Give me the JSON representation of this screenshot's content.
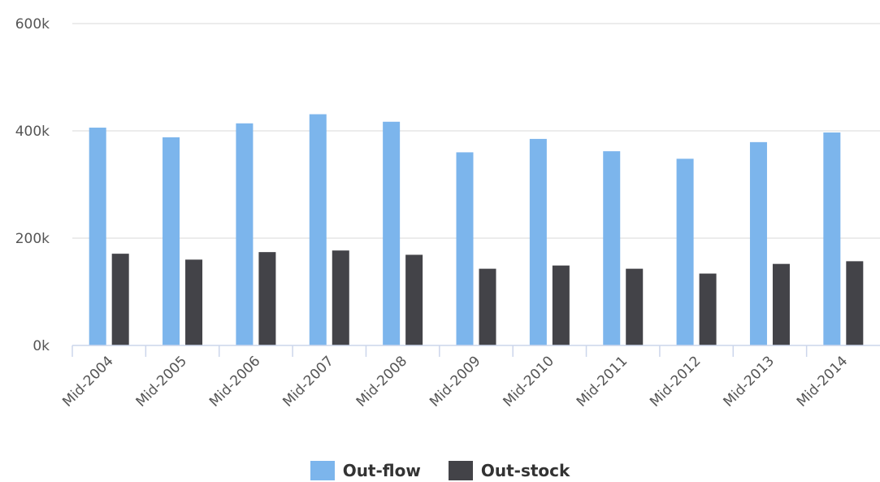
{
  "chart_data": {
    "type": "bar",
    "categories": [
      "Mid-2004",
      "Mid-2005",
      "Mid-2006",
      "Mid-2007",
      "Mid-2008",
      "Mid-2009",
      "Mid-2010",
      "Mid-2011",
      "Mid-2012",
      "Mid-2013",
      "Mid-2014"
    ],
    "series": [
      {
        "name": "Out-flow",
        "color": "#7cb5ec",
        "values": [
          406000,
          388000,
          414000,
          431000,
          417000,
          360000,
          385000,
          362000,
          348000,
          379000,
          397000
        ]
      },
      {
        "name": "Out-stock",
        "color": "#434348",
        "values": [
          171000,
          160000,
          174000,
          177000,
          169000,
          143000,
          149000,
          143000,
          134000,
          152000,
          157000
        ]
      }
    ],
    "yticks": [
      "0k",
      "200k",
      "400k",
      "600k"
    ],
    "ylim": [
      0,
      600000
    ],
    "grid": true,
    "legend_position": "bottom-center"
  }
}
